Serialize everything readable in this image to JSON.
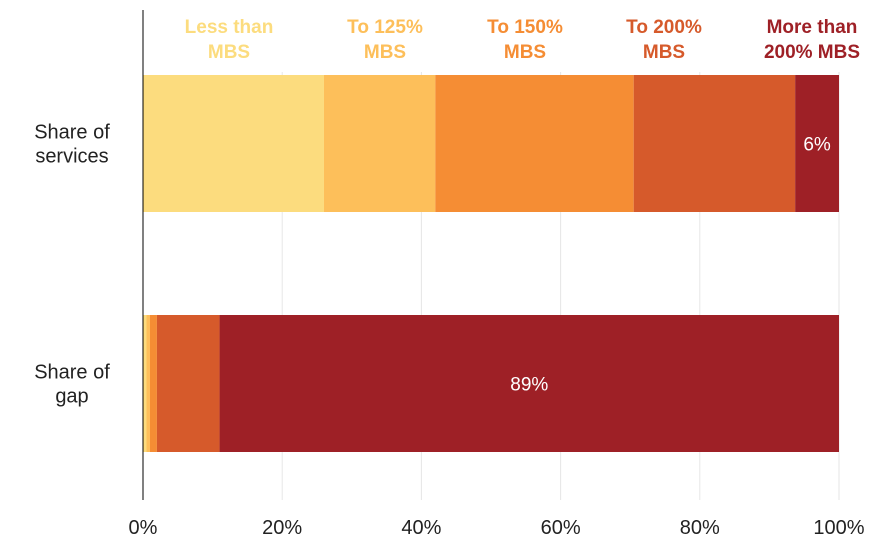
{
  "chart_data": {
    "type": "bar",
    "orientation": "horizontal",
    "stacked": true,
    "categories": [
      "Share of services",
      "Share of gap"
    ],
    "category_lines": [
      [
        "Share of",
        "services"
      ],
      [
        "Share of",
        "gap"
      ]
    ],
    "series": [
      {
        "name": "Less than MBS",
        "legend_lines": [
          "Less than",
          "MBS"
        ],
        "color": "#FCDC7E",
        "values": [
          26,
          0.5
        ]
      },
      {
        "name": "To 125% MBS",
        "legend_lines": [
          "To 125%",
          "MBS"
        ],
        "color": "#FDBF5A",
        "values": [
          16,
          0.5
        ]
      },
      {
        "name": "To 150% MBS",
        "legend_lines": [
          "To 150%",
          "MBS"
        ],
        "color": "#F58D34",
        "values": [
          28.5,
          1
        ]
      },
      {
        "name": "To 200% MBS",
        "legend_lines": [
          "To 200%",
          "MBS"
        ],
        "color": "#D65A2B",
        "values": [
          23.2,
          9
        ]
      },
      {
        "name": "More than 200% MBS",
        "legend_lines": [
          "More than",
          "200% MBS"
        ],
        "color": "#9E2026",
        "values": [
          6.3,
          89
        ]
      }
    ],
    "data_labels": [
      {
        "category_index": 0,
        "series_index": 4,
        "text": "6%"
      },
      {
        "category_index": 1,
        "series_index": 4,
        "text": "89%"
      }
    ],
    "x_ticks": [
      0,
      20,
      40,
      60,
      80,
      100
    ],
    "x_tick_labels": [
      "0%",
      "20%",
      "40%",
      "60%",
      "80%",
      "100%"
    ],
    "xlim": [
      0,
      100
    ],
    "grid": true,
    "legend_position": "top",
    "title": "",
    "xlabel": "",
    "ylabel": ""
  }
}
